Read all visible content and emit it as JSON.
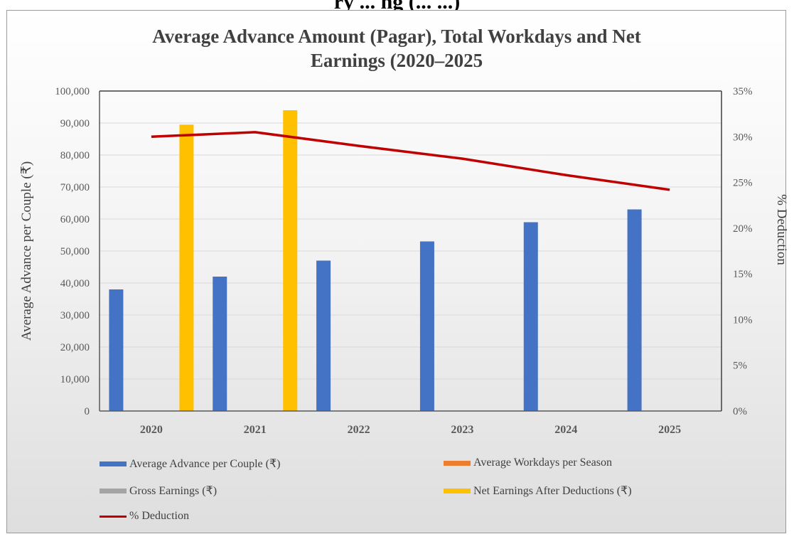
{
  "header": {
    "cut_title": "ry ... ng (... ...)"
  },
  "chart_data": {
    "type": "bar",
    "title_lines": [
      "Average Advance Amount (Pagar), Total Workdays and Net",
      "Earnings (2020–2025"
    ],
    "categories": [
      "2020",
      "2021",
      "2022",
      "2023",
      "2024",
      "2025"
    ],
    "ylabel": "Average Advance per Couple (₹)",
    "y2label": "% Deduction",
    "ylim": [
      0,
      100000
    ],
    "y2lim": [
      0,
      0.35
    ],
    "y_ticks": [
      "0",
      "10,000",
      "20,000",
      "30,000",
      "40,000",
      "50,000",
      "60,000",
      "70,000",
      "80,000",
      "90,000",
      "100,000"
    ],
    "y2_ticks": [
      "0%",
      "5%",
      "10%",
      "15%",
      "20%",
      "25%",
      "30%",
      "35%"
    ],
    "series": [
      {
        "name": "Average Advance per Couple (₹)",
        "type": "bar",
        "color": "#4472c4",
        "values": [
          38000,
          42000,
          47000,
          53000,
          59000,
          63000
        ]
      },
      {
        "name": "Average Workdays per Season",
        "type": "bar",
        "color": "#ed7d31",
        "values": [
          null,
          null,
          null,
          null,
          null,
          null
        ]
      },
      {
        "name": "Gross Earnings (₹)",
        "type": "bar",
        "color": "#a5a5a5",
        "values": [
          null,
          null,
          null,
          null,
          null,
          null
        ]
      },
      {
        "name": "Net Earnings After Deductions (₹)",
        "type": "bar",
        "color": "#ffc000",
        "values": [
          89500,
          94000,
          null,
          null,
          null,
          null
        ]
      },
      {
        "name": "% Deduction",
        "type": "line",
        "axis": "right",
        "color": "#c00000",
        "values": [
          0.3,
          0.305,
          0.29,
          0.276,
          0.258,
          0.242
        ]
      }
    ],
    "grid": true,
    "legend_position": "bottom"
  }
}
